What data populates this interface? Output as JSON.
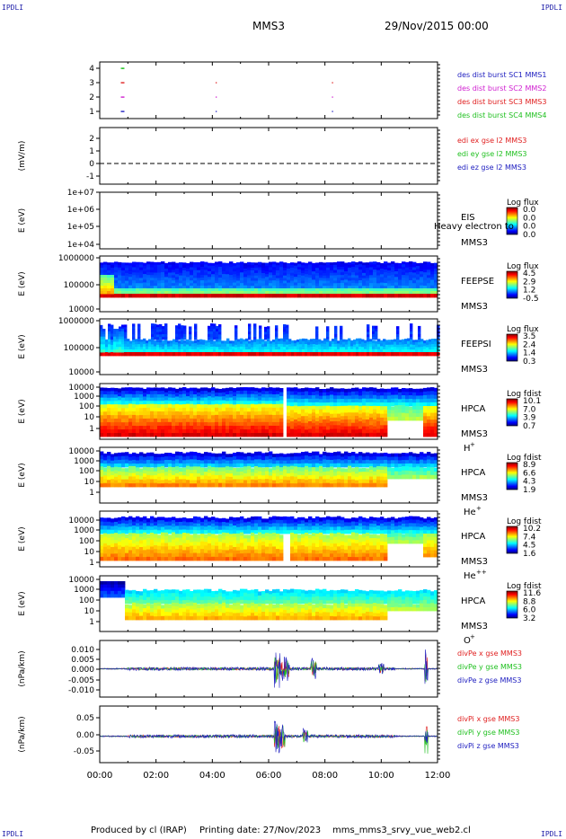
{
  "corners": {
    "tl": "IPDLI",
    "tr": "IPDLI",
    "bl": "IPDLI",
    "br": "IPDLI"
  },
  "header": {
    "mission": "MMS3",
    "date": "29/Nov/2015 00:00"
  },
  "footer": {
    "produced": "Produced by cl (IRAP)",
    "printing": "Printing date: 27/Nov/2023",
    "script": "mms_mms3_srvy_vue_web2.cl"
  },
  "time_axis": {
    "range_hours": [
      0,
      12
    ],
    "tick_labels": [
      "00:00",
      "02:00",
      "04:00",
      "06:00",
      "08:00",
      "10:00",
      "12:00"
    ]
  },
  "chart_data": [
    {
      "type": "scatter",
      "panel": "burst",
      "yticks": [
        "4",
        "3",
        "2",
        "1"
      ],
      "legend": [
        {
          "label": "des dist burst SC1 MMS1",
          "color": "#2020c0"
        },
        {
          "label": "des dist burst SC2 MMS2",
          "color": "#d020d0"
        },
        {
          "label": "des dist burst SC3 MMS3",
          "color": "#e02020"
        },
        {
          "label": "des dist burst SC4 MMS4",
          "color": "#20c020"
        }
      ],
      "series": [
        {
          "sc": 4,
          "color": "#20c020",
          "x": [
            0.75,
            0.8
          ]
        },
        {
          "sc": 3,
          "color": "#e02020",
          "x": [
            0.75,
            4.12,
            8.25
          ]
        },
        {
          "sc": 2,
          "color": "#d020d0",
          "x": [
            0.75,
            4.12,
            8.25
          ]
        },
        {
          "sc": 1,
          "color": "#2020c0",
          "x": [
            0.75,
            4.12,
            8.25
          ]
        }
      ]
    },
    {
      "type": "line",
      "panel": "edi",
      "ylabel": "(mV/m)",
      "ylim": [
        -1.5,
        3
      ],
      "yticks": [
        "2",
        "1",
        "0",
        "-1"
      ],
      "legend": [
        {
          "label": "edi ex gse l2 MMS3",
          "color": "#e02020"
        },
        {
          "label": "edi ey gse l2 MMS3",
          "color": "#20c020"
        },
        {
          "label": "edi ez gse l2 MMS3",
          "color": "#2020c0"
        }
      ],
      "zero_line": true
    },
    {
      "type": "heatmap",
      "panel": "eis",
      "ylabel": "E (eV)",
      "yticks": [
        "1e+07",
        "1e+06",
        "1e+05",
        "1e+04"
      ],
      "instrument": "EIS",
      "instrument_sub": "MMS3",
      "overlay_text": "Heavy electron to",
      "colorbar": {
        "title": "Log flux",
        "ticks": [
          "0.0",
          "0.0",
          "0.0",
          "0.0"
        ]
      }
    },
    {
      "type": "heatmap",
      "panel": "feepse",
      "ylabel": "E (eV)",
      "yticks": [
        "1000000",
        "100000",
        "10000"
      ],
      "instrument": "FEEPSE",
      "instrument_sub": "MMS3",
      "colorbar": {
        "title": "Log flux",
        "ticks": [
          "4.5",
          "2.9",
          "1.2",
          "-0.5"
        ]
      }
    },
    {
      "type": "heatmap",
      "panel": "feepsi",
      "ylabel": "E (eV)",
      "yticks": [
        "1000000",
        "100000",
        "10000"
      ],
      "instrument": "FEEPSI",
      "instrument_sub": "MMS3",
      "colorbar": {
        "title": "Log flux",
        "ticks": [
          "3.5",
          "2.4",
          "1.4",
          "0.3"
        ]
      }
    },
    {
      "type": "heatmap",
      "panel": "hpca_h",
      "ylabel": "E (eV)",
      "yticks": [
        "10000",
        "1000",
        "100",
        "10",
        "1"
      ],
      "instrument": "HPCA",
      "instrument_sub": "MMS3",
      "species": "H",
      "charge": "+",
      "colorbar": {
        "title": "Log fdist",
        "ticks": [
          "10.1",
          "7.0",
          "3.9",
          "0.7"
        ]
      }
    },
    {
      "type": "heatmap",
      "panel": "hpca_he",
      "ylabel": "E (eV)",
      "yticks": [
        "10000",
        "1000",
        "100",
        "10",
        "1"
      ],
      "instrument": "HPCA",
      "instrument_sub": "MMS3",
      "species": "He",
      "charge": "+",
      "colorbar": {
        "title": "Log fdist",
        "ticks": [
          "8.9",
          "6.6",
          "4.3",
          "1.9"
        ]
      }
    },
    {
      "type": "heatmap",
      "panel": "hpca_hepp",
      "ylabel": "E (eV)",
      "yticks": [
        "10000",
        "1000",
        "100",
        "10",
        "1"
      ],
      "instrument": "HPCA",
      "instrument_sub": "MMS3",
      "species": "He",
      "charge": "++",
      "colorbar": {
        "title": "Log fdist",
        "ticks": [
          "10.2",
          "7.4",
          "4.5",
          "1.6"
        ]
      }
    },
    {
      "type": "heatmap",
      "panel": "hpca_o",
      "ylabel": "E (eV)",
      "yticks": [
        "10000",
        "1000",
        "100",
        "10",
        "1"
      ],
      "instrument": "HPCA",
      "instrument_sub": "MMS3",
      "species": "O",
      "charge": "+",
      "colorbar": {
        "title": "Log fdist",
        "ticks": [
          "11.6",
          "8.8",
          "6.0",
          "3.2"
        ]
      }
    },
    {
      "type": "line",
      "panel": "divpe",
      "ylabel": "(nPa/km)",
      "ylim": [
        -0.013,
        0.013
      ],
      "yticks": [
        "0.010",
        "0.005",
        "0.000",
        "-0.005",
        "-0.010"
      ],
      "legend": [
        {
          "label": "divPe x gse MMS3",
          "color": "#e02020"
        },
        {
          "label": "divPe y gse MMS3",
          "color": "#20c020"
        },
        {
          "label": "divPe z gse MMS3",
          "color": "#2020c0"
        }
      ]
    },
    {
      "type": "line",
      "panel": "divpi",
      "ylabel": "(nPa/km)",
      "ylim": [
        -0.07,
        0.08
      ],
      "yticks": [
        "0.05",
        "0.00",
        "-0.05"
      ],
      "legend": [
        {
          "label": "divPi x gse MMS3",
          "color": "#e02020"
        },
        {
          "label": "divPi y gse MMS3",
          "color": "#20c020"
        },
        {
          "label": "divPi z gse MMS3",
          "color": "#2020c0"
        }
      ]
    }
  ]
}
